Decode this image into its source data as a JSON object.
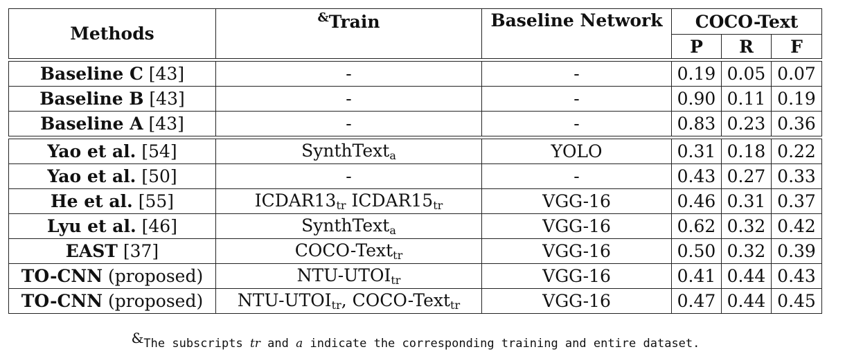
{
  "header": {
    "methods": "Methods",
    "train_mark": "&",
    "train": "Train",
    "baseline_network": "Baseline Network",
    "dataset": "COCO-Text",
    "p": "P",
    "r": "R",
    "f": "F"
  },
  "group1": [
    {
      "name": "Baseline C",
      "ref": " [43]",
      "train": "-",
      "train_sub": "",
      "network": "-",
      "p": "0.19",
      "r": "0.05",
      "f": "0.07"
    },
    {
      "name": "Baseline B",
      "ref": " [43]",
      "train": "-",
      "train_sub": "",
      "network": "-",
      "p": "0.90",
      "r": "0.11",
      "f": "0.19"
    },
    {
      "name": "Baseline A",
      "ref": " [43]",
      "train": "-",
      "train_sub": "",
      "network": "-",
      "p": "0.83",
      "r": "0.23",
      "f": "0.36"
    }
  ],
  "group2": [
    {
      "name": "Yao et al.",
      "ref": " [54]",
      "network": "YOLO",
      "p": "0.31",
      "r": "0.18",
      "f": "0.22"
    },
    {
      "name": "Yao et al.",
      "ref": " [50]",
      "network": "-",
      "p": "0.43",
      "r": "0.27",
      "f": "0.33"
    },
    {
      "name": "He et al.",
      "ref": " [55]",
      "network": "VGG-16",
      "p": "0.46",
      "r": "0.31",
      "f": "0.37"
    },
    {
      "name": "Lyu et al.",
      "ref": " [46]",
      "network": "VGG-16",
      "p": "0.62",
      "r": "0.32",
      "f": "0.42"
    },
    {
      "name": "EAST",
      "ref": " [37]",
      "network": "VGG-16",
      "p": "0.50",
      "r": "0.32",
      "f": "0.39"
    },
    {
      "name": "TO-CNN",
      "ref": " (proposed)",
      "network": "VGG-16",
      "p": "0.41",
      "r": "0.44",
      "f": "0.43"
    },
    {
      "name": "TO-CNN",
      "ref": " (proposed)",
      "network": "VGG-16",
      "p": "0.47",
      "r": "0.44",
      "f": "0.45"
    }
  ],
  "train": {
    "synth": "SynthText",
    "synth_sub": "a",
    "dash": "-",
    "icdar13": "ICDAR13",
    "icdar15": "ICDAR15",
    "tr": "tr",
    "coco": "COCO-Text",
    "ntu": "NTU-UTOI",
    "comma": ", "
  },
  "caption": {
    "mark": "&",
    "t1": "The subscripts ",
    "tr": "tr",
    "t2": " and ",
    "a": "a",
    "t3": " indicate the corresponding training and entire dataset."
  }
}
